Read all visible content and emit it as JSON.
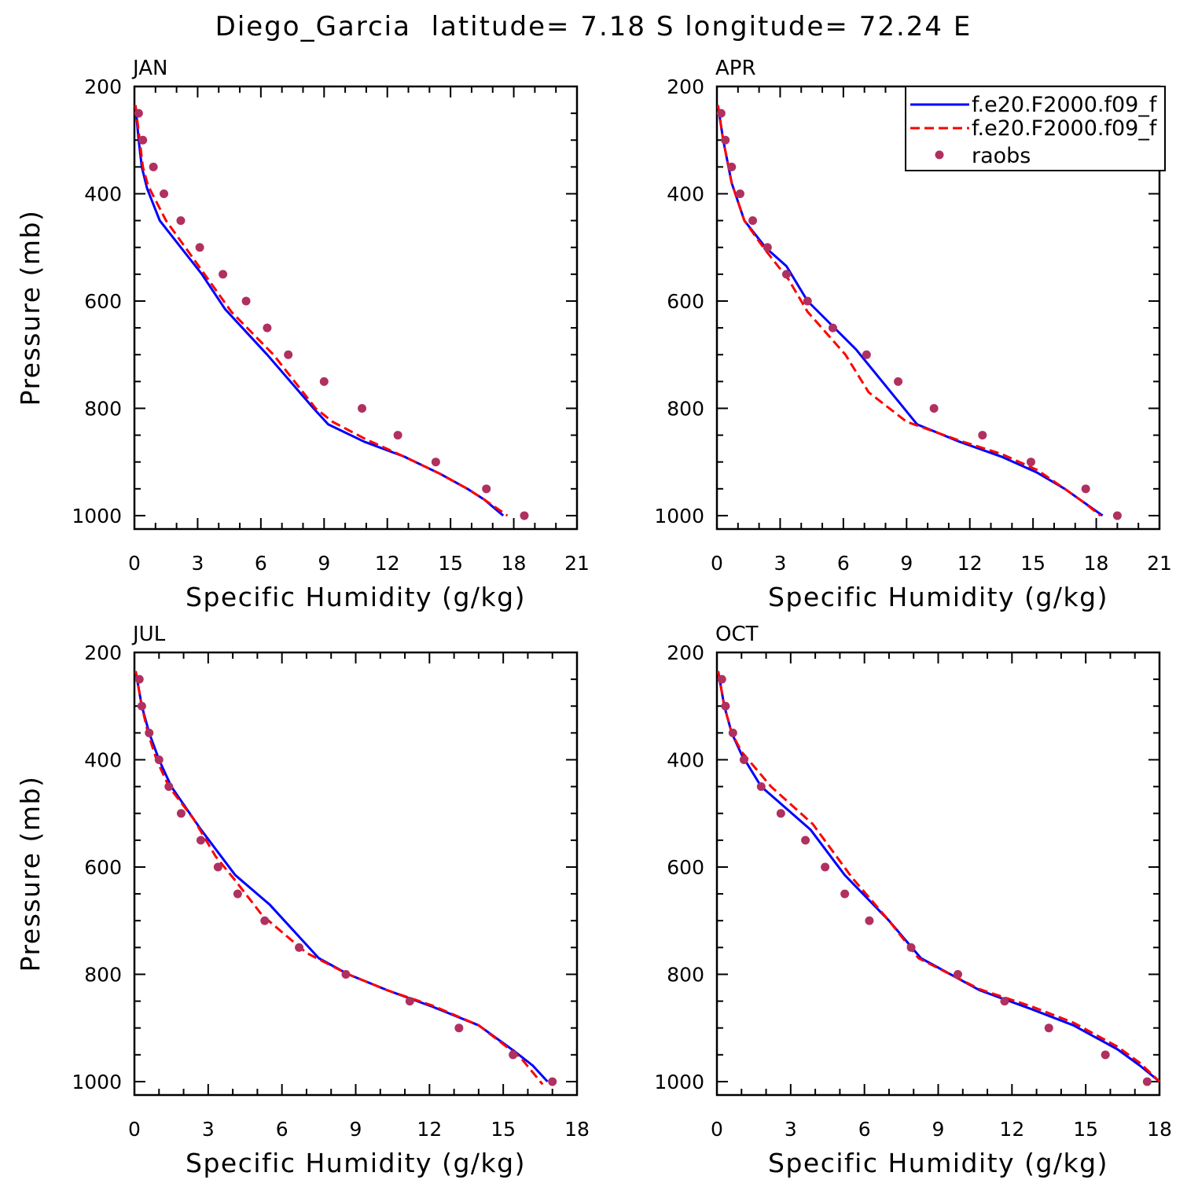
{
  "figure": {
    "title": "Diego_Garcia  latitude= 7.18 S longitude= 72.24 E"
  },
  "legend": {
    "entries": [
      {
        "label": "f.e20.F2000.f09_f",
        "color": "#0000ff",
        "style": "solid"
      },
      {
        "label": "f.e20.F2000.f09_f",
        "color": "#ff0000",
        "style": "dashed"
      },
      {
        "label": "raobs",
        "color": "#b03060",
        "style": "dot"
      }
    ]
  },
  "chart_data": [
    {
      "type": "line",
      "title": "JAN",
      "xlabel": "Specific Humidity (g/kg)",
      "ylabel": "Pressure (mb)",
      "xlim": [
        0,
        21
      ],
      "ylim": [
        1025,
        200
      ],
      "xticks": [
        0,
        3,
        6,
        9,
        12,
        15,
        18,
        21
      ],
      "yticks": [
        200,
        400,
        600,
        800,
        1000
      ],
      "y_inverted": true,
      "show_legend": false,
      "series": [
        {
          "name": "f.e20.F2000.f09_f",
          "style": "solid",
          "color": "#0000ff",
          "points": [
            [
              0.05,
              235
            ],
            [
              0.2,
              300
            ],
            [
              0.35,
              350
            ],
            [
              0.6,
              390
            ],
            [
              1.2,
              450
            ],
            [
              2.2,
              500
            ],
            [
              3.2,
              550
            ],
            [
              4.3,
              615
            ],
            [
              6.3,
              700
            ],
            [
              8.5,
              800
            ],
            [
              9.2,
              830
            ],
            [
              10.9,
              862
            ],
            [
              12.8,
              890
            ],
            [
              14.5,
              922
            ],
            [
              15.8,
              950
            ],
            [
              16.6,
              970
            ],
            [
              17.5,
              1000
            ]
          ]
        },
        {
          "name": "f.e20.F2000.f09_f",
          "style": "dashed",
          "color": "#ff0000",
          "points": [
            [
              0.05,
              235
            ],
            [
              0.25,
              300
            ],
            [
              0.4,
              350
            ],
            [
              0.65,
              385
            ],
            [
              1.5,
              450
            ],
            [
              2.6,
              510
            ],
            [
              3.6,
              565
            ],
            [
              4.6,
              620
            ],
            [
              6.6,
              700
            ],
            [
              8.6,
              800
            ],
            [
              9.4,
              825
            ],
            [
              11,
              858
            ],
            [
              12.8,
              890
            ],
            [
              14.5,
              922
            ],
            [
              15.8,
              950
            ],
            [
              16.6,
              970
            ],
            [
              17.7,
              1000
            ]
          ]
        },
        {
          "name": "raobs",
          "style": "dot",
          "color": "#b03060",
          "points": [
            [
              0.2,
              250
            ],
            [
              0.4,
              300
            ],
            [
              0.9,
              350
            ],
            [
              1.4,
              400
            ],
            [
              2.2,
              450
            ],
            [
              3.1,
              500
            ],
            [
              4.2,
              550
            ],
            [
              5.3,
              600
            ],
            [
              6.3,
              650
            ],
            [
              7.3,
              700
            ],
            [
              9,
              750
            ],
            [
              10.8,
              800
            ],
            [
              12.5,
              850
            ],
            [
              14.3,
              900
            ],
            [
              16.7,
              950
            ],
            [
              18.5,
              1000
            ]
          ]
        }
      ]
    },
    {
      "type": "line",
      "title": "APR",
      "xlabel": "Specific Humidity (g/kg)",
      "ylabel": "",
      "xlim": [
        0,
        21
      ],
      "ylim": [
        1025,
        200
      ],
      "xticks": [
        0,
        3,
        6,
        9,
        12,
        15,
        18,
        21
      ],
      "yticks": [
        200,
        400,
        600,
        800,
        1000
      ],
      "y_inverted": true,
      "show_legend": true,
      "series": [
        {
          "name": "f.e20.F2000.f09_f",
          "style": "solid",
          "color": "#0000ff",
          "points": [
            [
              0.05,
              235
            ],
            [
              0.3,
              300
            ],
            [
              0.7,
              380
            ],
            [
              1.3,
              450
            ],
            [
              2.3,
              500
            ],
            [
              3.3,
              535
            ],
            [
              4.3,
              600
            ],
            [
              6.6,
              690
            ],
            [
              9.5,
              830
            ],
            [
              11.5,
              862
            ],
            [
              13.5,
              890
            ],
            [
              15.2,
              920
            ],
            [
              16.5,
              950
            ],
            [
              17.4,
              975
            ],
            [
              18.3,
              1000
            ]
          ]
        },
        {
          "name": "f.e20.F2000.f09_f",
          "style": "dashed",
          "color": "#ff0000",
          "points": [
            [
              0.05,
              235
            ],
            [
              0.3,
              300
            ],
            [
              0.7,
              380
            ],
            [
              1.3,
              450
            ],
            [
              2.2,
              500
            ],
            [
              3.4,
              560
            ],
            [
              4.3,
              620
            ],
            [
              6.1,
              700
            ],
            [
              7.2,
              770
            ],
            [
              9,
              825
            ],
            [
              11.5,
              860
            ],
            [
              13.5,
              885
            ],
            [
              15.2,
              915
            ],
            [
              16.5,
              950
            ],
            [
              17.4,
              975
            ],
            [
              18.2,
              1000
            ]
          ]
        },
        {
          "name": "raobs",
          "style": "dot",
          "color": "#b03060",
          "points": [
            [
              0.2,
              250
            ],
            [
              0.4,
              300
            ],
            [
              0.7,
              350
            ],
            [
              1.1,
              400
            ],
            [
              1.7,
              450
            ],
            [
              2.4,
              500
            ],
            [
              3.3,
              550
            ],
            [
              4.3,
              600
            ],
            [
              5.5,
              650
            ],
            [
              7.1,
              700
            ],
            [
              8.6,
              750
            ],
            [
              10.3,
              800
            ],
            [
              12.6,
              850
            ],
            [
              14.9,
              900
            ],
            [
              17.5,
              950
            ],
            [
              19,
              1000
            ]
          ]
        }
      ]
    },
    {
      "type": "line",
      "title": "JUL",
      "xlabel": "Specific Humidity (g/kg)",
      "ylabel": "Pressure (mb)",
      "xlim": [
        0,
        18
      ],
      "ylim": [
        1025,
        200
      ],
      "xticks": [
        0,
        3,
        6,
        9,
        12,
        15,
        18
      ],
      "yticks": [
        200,
        400,
        600,
        800,
        1000
      ],
      "y_inverted": true,
      "show_legend": false,
      "series": [
        {
          "name": "f.e20.F2000.f09_f",
          "style": "solid",
          "color": "#0000ff",
          "points": [
            [
              0.05,
              235
            ],
            [
              0.3,
              300
            ],
            [
              0.6,
              350
            ],
            [
              1,
              400
            ],
            [
              1.5,
              450
            ],
            [
              2.7,
              530
            ],
            [
              4.1,
              615
            ],
            [
              5.5,
              670
            ],
            [
              7.5,
              770
            ],
            [
              8.7,
              800
            ],
            [
              10.3,
              830
            ],
            [
              12.1,
              860
            ],
            [
              14,
              895
            ],
            [
              15.5,
              945
            ],
            [
              16.2,
              970
            ],
            [
              16.8,
              1000
            ]
          ]
        },
        {
          "name": "f.e20.F2000.f09_f",
          "style": "dashed",
          "color": "#ff0000",
          "points": [
            [
              0.05,
              235
            ],
            [
              0.3,
              300
            ],
            [
              0.55,
              350
            ],
            [
              0.9,
              400
            ],
            [
              1.4,
              450
            ],
            [
              2.4,
              510
            ],
            [
              3.3,
              580
            ],
            [
              4.1,
              625
            ],
            [
              5.2,
              690
            ],
            [
              7,
              760
            ],
            [
              8.7,
              800
            ],
            [
              10.3,
              830
            ],
            [
              12.1,
              858
            ],
            [
              14,
              895
            ],
            [
              15.7,
              955
            ],
            [
              16.6,
              1005
            ]
          ]
        },
        {
          "name": "raobs",
          "style": "dot",
          "color": "#b03060",
          "points": [
            [
              0.2,
              250
            ],
            [
              0.3,
              300
            ],
            [
              0.6,
              350
            ],
            [
              1,
              400
            ],
            [
              1.4,
              450
            ],
            [
              1.9,
              500
            ],
            [
              2.7,
              550
            ],
            [
              3.4,
              600
            ],
            [
              4.2,
              650
            ],
            [
              5.3,
              700
            ],
            [
              6.7,
              750
            ],
            [
              8.6,
              800
            ],
            [
              11.2,
              850
            ],
            [
              13.2,
              900
            ],
            [
              15.4,
              950
            ],
            [
              17,
              1000
            ]
          ]
        }
      ]
    },
    {
      "type": "line",
      "title": "OCT",
      "xlabel": "Specific Humidity (g/kg)",
      "ylabel": "",
      "xlim": [
        0,
        18
      ],
      "ylim": [
        1025,
        200
      ],
      "xticks": [
        0,
        3,
        6,
        9,
        12,
        15,
        18
      ],
      "yticks": [
        200,
        400,
        600,
        800,
        1000
      ],
      "y_inverted": true,
      "show_legend": false,
      "series": [
        {
          "name": "f.e20.F2000.f09_f",
          "style": "solid",
          "color": "#0000ff",
          "points": [
            [
              0.05,
              235
            ],
            [
              0.3,
              300
            ],
            [
              0.6,
              350
            ],
            [
              1,
              390
            ],
            [
              1.8,
              450
            ],
            [
              3.8,
              530
            ],
            [
              5.2,
              615
            ],
            [
              7,
              700
            ],
            [
              8.3,
              770
            ],
            [
              10.7,
              830
            ],
            [
              12.8,
              865
            ],
            [
              14.5,
              895
            ],
            [
              16.3,
              940
            ],
            [
              17.2,
              970
            ],
            [
              18,
              1000
            ]
          ]
        },
        {
          "name": "f.e20.F2000.f09_f",
          "style": "dashed",
          "color": "#ff0000",
          "points": [
            [
              0.05,
              235
            ],
            [
              0.3,
              300
            ],
            [
              0.6,
              350
            ],
            [
              1,
              385
            ],
            [
              2.2,
              450
            ],
            [
              3.9,
              520
            ],
            [
              5.5,
              620
            ],
            [
              7,
              700
            ],
            [
              8.2,
              770
            ],
            [
              10.7,
              828
            ],
            [
              12.8,
              860
            ],
            [
              14.5,
              890
            ],
            [
              16.3,
              935
            ],
            [
              17.2,
              965
            ],
            [
              18,
              1000
            ]
          ]
        },
        {
          "name": "raobs",
          "style": "dot",
          "color": "#b03060",
          "points": [
            [
              0.2,
              250
            ],
            [
              0.35,
              300
            ],
            [
              0.65,
              350
            ],
            [
              1.1,
              400
            ],
            [
              1.8,
              450
            ],
            [
              2.6,
              500
            ],
            [
              3.6,
              550
            ],
            [
              4.4,
              600
            ],
            [
              5.2,
              650
            ],
            [
              6.2,
              700
            ],
            [
              7.9,
              750
            ],
            [
              9.8,
              800
            ],
            [
              11.7,
              850
            ],
            [
              13.5,
              900
            ],
            [
              15.8,
              950
            ],
            [
              17.5,
              1000
            ]
          ]
        }
      ]
    }
  ]
}
